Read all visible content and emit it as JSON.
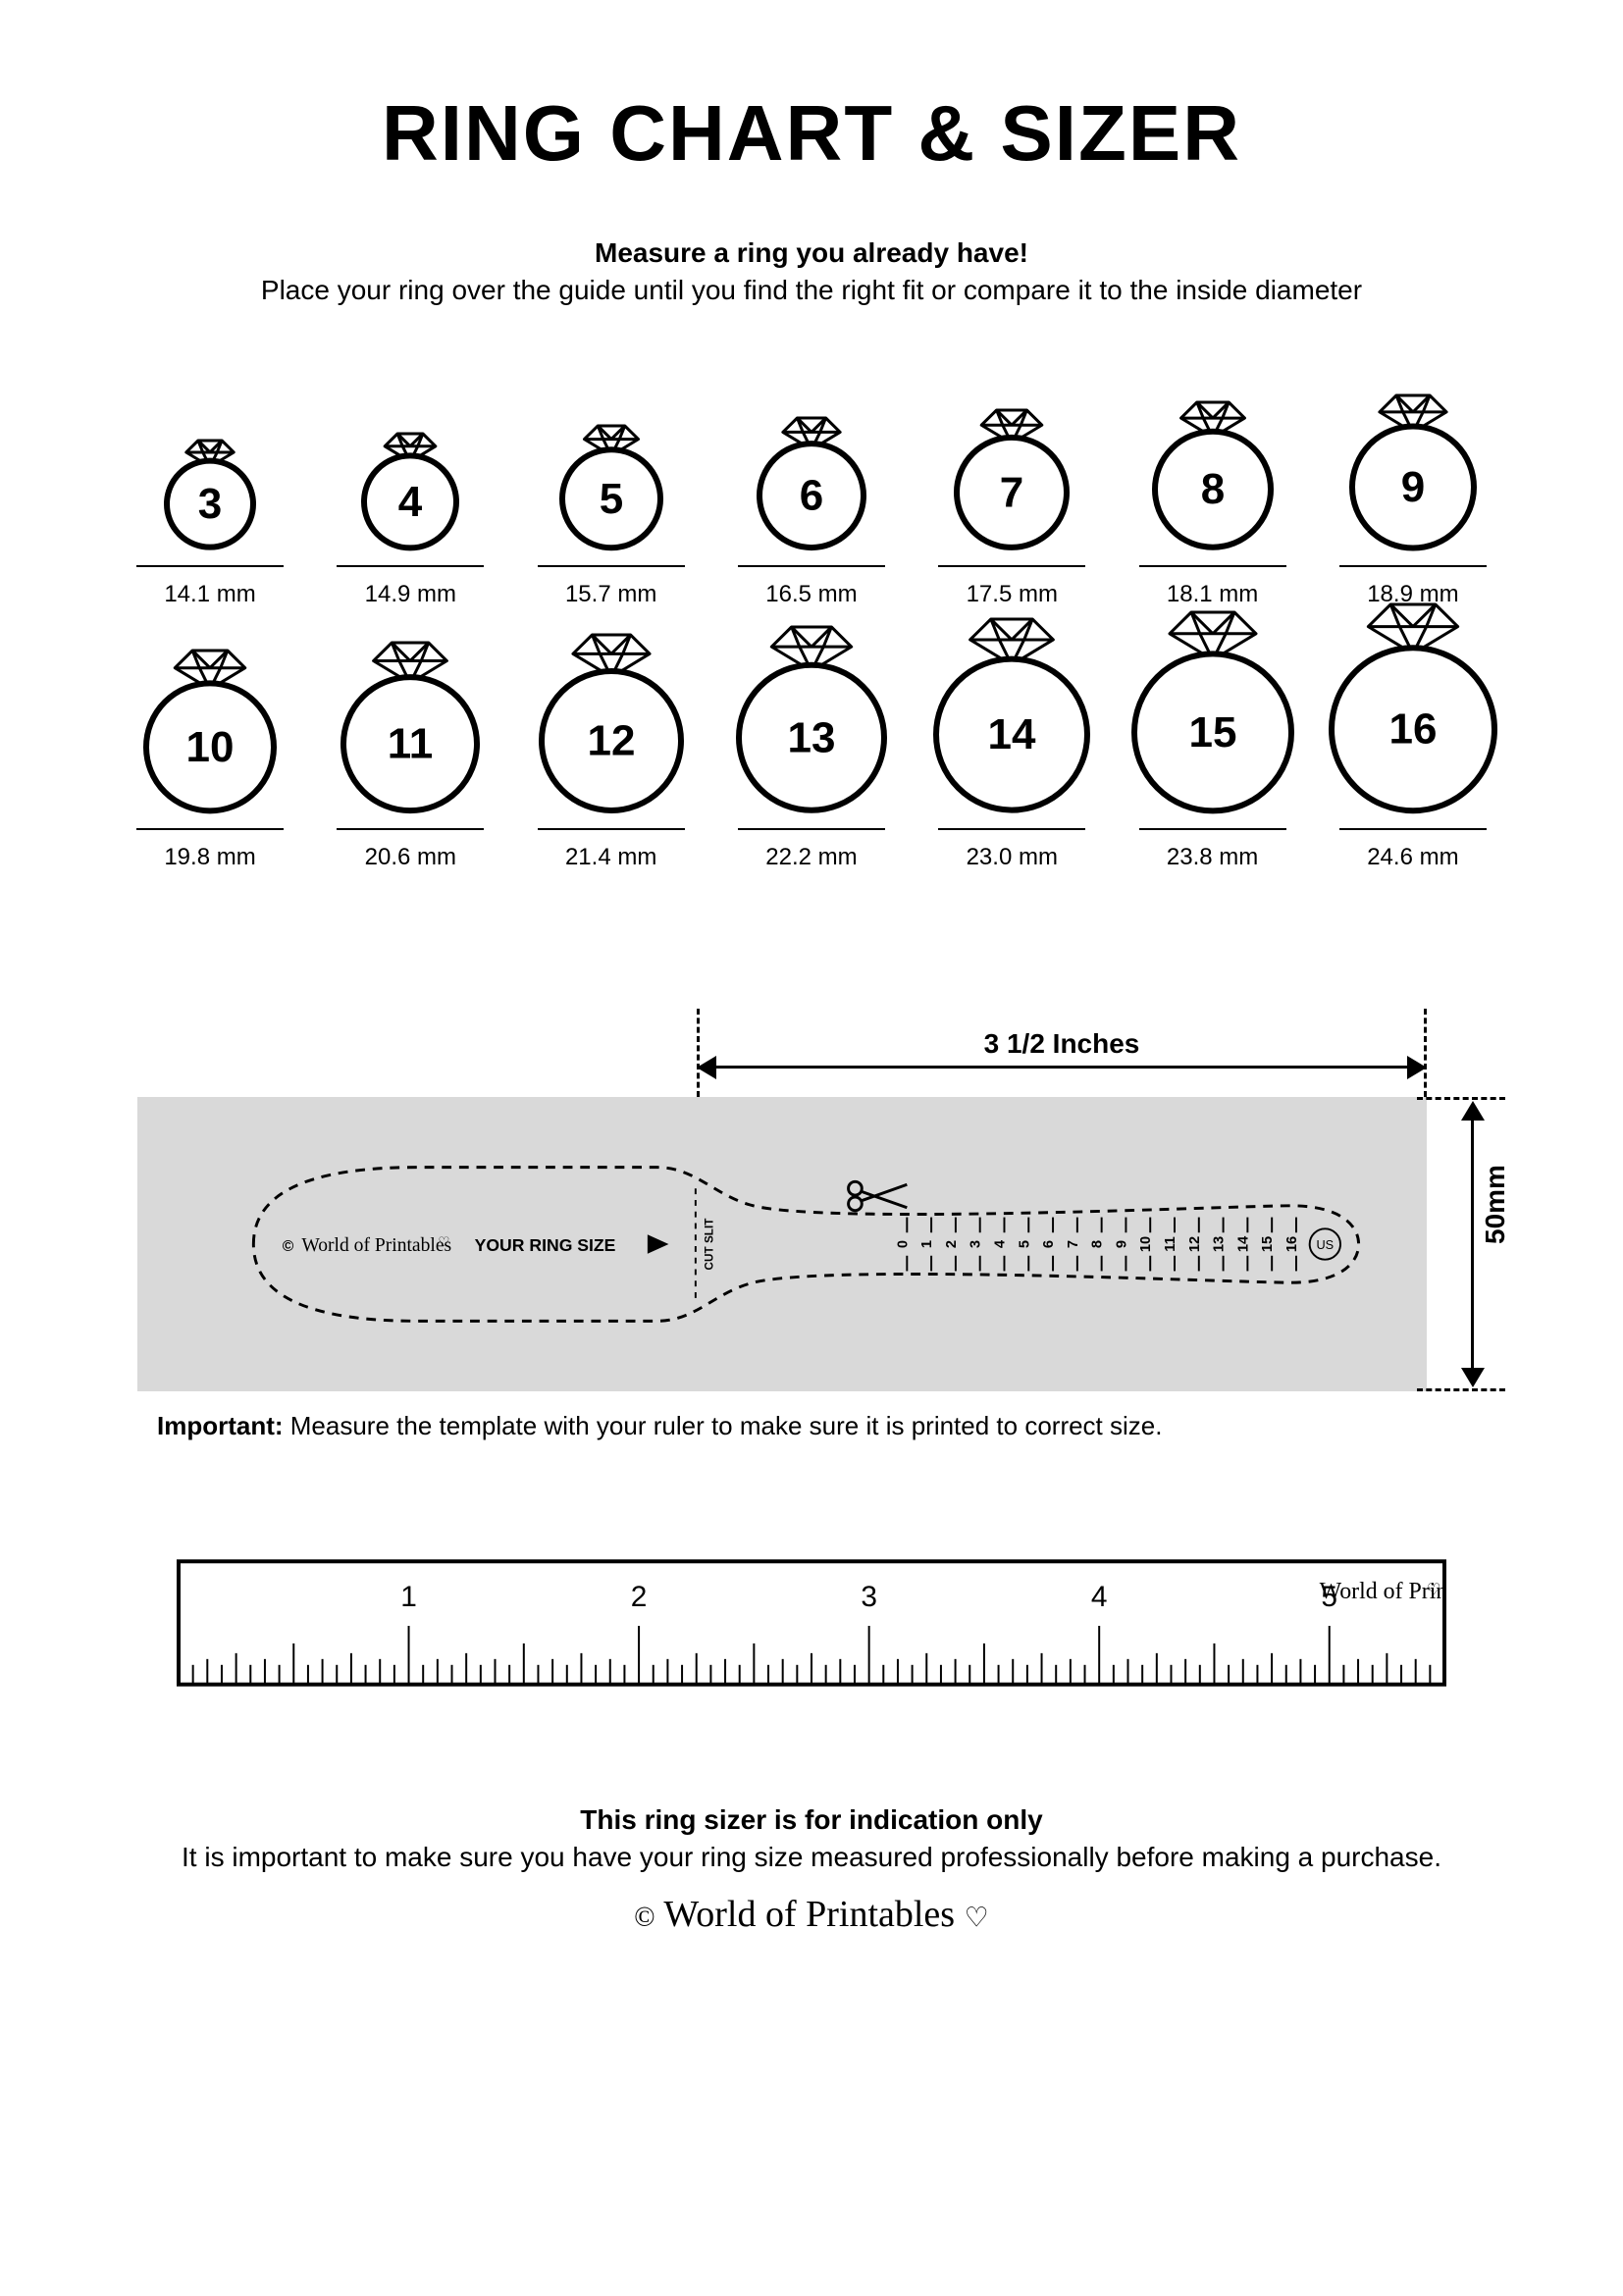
{
  "title": "RING CHART & SIZER",
  "subtitle_bold": "Measure a ring you already have!",
  "subtitle": "Place your ring over the guide until you find the right fit or compare it to the inside diameter",
  "rings": [
    {
      "size": "3",
      "mm": "14.1 mm",
      "d": 88
    },
    {
      "size": "4",
      "mm": "14.9 mm",
      "d": 94
    },
    {
      "size": "5",
      "mm": "15.7 mm",
      "d": 100
    },
    {
      "size": "6",
      "mm": "16.5 mm",
      "d": 106
    },
    {
      "size": "7",
      "mm": "17.5 mm",
      "d": 112
    },
    {
      "size": "8",
      "mm": "18.1 mm",
      "d": 118
    },
    {
      "size": "9",
      "mm": "18.9 mm",
      "d": 124
    },
    {
      "size": "10",
      "mm": "19.8 mm",
      "d": 130
    },
    {
      "size": "11",
      "mm": "20.6 mm",
      "d": 136
    },
    {
      "size": "12",
      "mm": "21.4 mm",
      "d": 142
    },
    {
      "size": "13",
      "mm": "22.2 mm",
      "d": 148
    },
    {
      "size": "14",
      "mm": "23.0 mm",
      "d": 154
    },
    {
      "size": "15",
      "mm": "23.8 mm",
      "d": 160
    },
    {
      "size": "16",
      "mm": "24.6 mm",
      "d": 166
    }
  ],
  "ring_stroke": "#000000",
  "ring_stroke_width": 6,
  "ring_number_fontsize": 44,
  "sizer": {
    "width_label": "3 1/2 Inches",
    "height_label": "50mm",
    "your_ring_size": "YOUR RING SIZE",
    "cut_slit": "CUT SLIT",
    "brand_small": "World of Printables",
    "us_label": "US",
    "tick_labels": [
      "0",
      "1",
      "2",
      "3",
      "4",
      "5",
      "6",
      "7",
      "8",
      "9",
      "10",
      "11",
      "12",
      "13",
      "14",
      "15",
      "16"
    ],
    "bg_color": "#d9d9d9"
  },
  "important_label": "Important:",
  "important_text": " Measure the template with your ruler to make sure it is printed to correct size.",
  "ruler": {
    "inch_labels": [
      "1",
      "2",
      "3",
      "4",
      "5"
    ],
    "brand": "World of Printables",
    "border_color": "#000000"
  },
  "footer_bold": "This ring sizer is for indication only",
  "footer_text": "It is important to make sure you have your ring size measured professionally before making a purchase.",
  "footer_brand": "World of Printables"
}
